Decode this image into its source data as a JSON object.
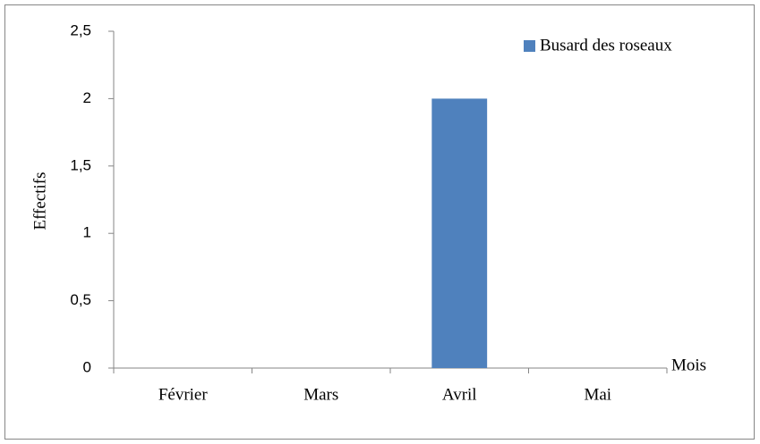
{
  "chart_data": {
    "type": "bar",
    "categories": [
      "Février",
      "Mars",
      "Avril",
      "Mai"
    ],
    "series": [
      {
        "name": "Busard des roseaux",
        "color": "#4f81bd",
        "values": [
          0,
          0,
          2,
          0
        ]
      }
    ],
    "xlabel": "Mois",
    "ylabel": "Effectifs",
    "ylim": [
      0,
      2.5
    ],
    "yticks": [
      0,
      {
        "value": 0.5,
        "label": "0,5"
      },
      1,
      {
        "value": 1.5,
        "label": "1,5"
      },
      2,
      {
        "value": 2.5,
        "label": "2,5"
      }
    ],
    "grid": false,
    "legend": "upper right"
  }
}
